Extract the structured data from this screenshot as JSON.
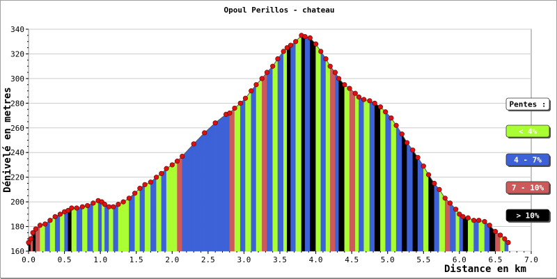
{
  "chart_data": {
    "type": "area",
    "title": "Opoul Perillos - chateau",
    "xlabel": "Distance en km",
    "ylabel": "Dénivelé en metres",
    "xlim": [
      0,
      7
    ],
    "ylim": [
      160,
      340
    ],
    "x_ticks": [
      "0.0",
      "0.5",
      "1.0",
      "1.5",
      "2.0",
      "2.5",
      "3.0",
      "3.5",
      "4.0",
      "4.5",
      "5.0",
      "5.5",
      "6.0",
      "6.5",
      "7.0"
    ],
    "y_ticks": [
      "160",
      "180",
      "200",
      "220",
      "240",
      "260",
      "280",
      "300",
      "320",
      "340"
    ],
    "grid": true,
    "legend": {
      "position": "right",
      "title": "Pentes :",
      "entries": [
        {
          "label": "< 4%",
          "color": "#aaff33"
        },
        {
          "label": "4 - 7%",
          "color": "#3d62d8"
        },
        {
          "label": "7 - 10%",
          "color": "#cc5a5a"
        },
        {
          "label": "> 10%",
          "color": "#000000"
        }
      ]
    },
    "colors": {
      "lt4": "#aaff33",
      "p4_7": "#3d62d8",
      "p7_10": "#cc5a5a",
      "gt10": "#000000",
      "points": "#dd1111"
    },
    "profile": [
      {
        "x": 0.0,
        "y": 167,
        "c": "gt10"
      },
      {
        "x": 0.03,
        "y": 170,
        "c": "p7_10"
      },
      {
        "x": 0.06,
        "y": 175,
        "c": "gt10"
      },
      {
        "x": 0.1,
        "y": 178,
        "c": "p7_10"
      },
      {
        "x": 0.16,
        "y": 181,
        "c": "lt4"
      },
      {
        "x": 0.23,
        "y": 182,
        "c": "p4_7"
      },
      {
        "x": 0.3,
        "y": 185,
        "c": "lt4"
      },
      {
        "x": 0.37,
        "y": 188,
        "c": "p4_7"
      },
      {
        "x": 0.44,
        "y": 190,
        "c": "lt4"
      },
      {
        "x": 0.5,
        "y": 192,
        "c": "p4_7"
      },
      {
        "x": 0.55,
        "y": 193,
        "c": "gt10"
      },
      {
        "x": 0.6,
        "y": 195,
        "c": "lt4"
      },
      {
        "x": 0.67,
        "y": 195,
        "c": "p4_7"
      },
      {
        "x": 0.75,
        "y": 196,
        "c": "lt4"
      },
      {
        "x": 0.82,
        "y": 197,
        "c": "p4_7"
      },
      {
        "x": 0.9,
        "y": 199,
        "c": "lt4"
      },
      {
        "x": 0.97,
        "y": 201,
        "c": "p4_7"
      },
      {
        "x": 1.02,
        "y": 200,
        "c": "lt4"
      },
      {
        "x": 1.06,
        "y": 198,
        "c": "p4_7"
      },
      {
        "x": 1.12,
        "y": 196,
        "c": "lt4"
      },
      {
        "x": 1.18,
        "y": 196,
        "c": "p4_7"
      },
      {
        "x": 1.25,
        "y": 198,
        "c": "lt4"
      },
      {
        "x": 1.32,
        "y": 200,
        "c": "lt4"
      },
      {
        "x": 1.4,
        "y": 203,
        "c": "p4_7"
      },
      {
        "x": 1.48,
        "y": 207,
        "c": "lt4"
      },
      {
        "x": 1.55,
        "y": 211,
        "c": "p4_7"
      },
      {
        "x": 1.62,
        "y": 214,
        "c": "lt4"
      },
      {
        "x": 1.7,
        "y": 216,
        "c": "p4_7"
      },
      {
        "x": 1.78,
        "y": 220,
        "c": "lt4"
      },
      {
        "x": 1.85,
        "y": 223,
        "c": "p4_7"
      },
      {
        "x": 1.92,
        "y": 227,
        "c": "lt4"
      },
      {
        "x": 2.0,
        "y": 230,
        "c": "lt4"
      },
      {
        "x": 2.07,
        "y": 233,
        "c": "p7_10"
      },
      {
        "x": 2.14,
        "y": 237,
        "c": "p4_7"
      },
      {
        "x": 2.3,
        "y": 247,
        "c": "p4_7"
      },
      {
        "x": 2.45,
        "y": 256,
        "c": "p4_7"
      },
      {
        "x": 2.6,
        "y": 264,
        "c": "p4_7"
      },
      {
        "x": 2.75,
        "y": 271,
        "c": "p4_7"
      },
      {
        "x": 2.8,
        "y": 272,
        "c": "p7_10"
      },
      {
        "x": 2.87,
        "y": 276,
        "c": "lt4"
      },
      {
        "x": 2.95,
        "y": 280,
        "c": "p4_7"
      },
      {
        "x": 3.02,
        "y": 284,
        "c": "lt4"
      },
      {
        "x": 3.1,
        "y": 290,
        "c": "p4_7"
      },
      {
        "x": 3.17,
        "y": 295,
        "c": "lt4"
      },
      {
        "x": 3.25,
        "y": 300,
        "c": "p7_10"
      },
      {
        "x": 3.32,
        "y": 305,
        "c": "p4_7"
      },
      {
        "x": 3.4,
        "y": 310,
        "c": "lt4"
      },
      {
        "x": 3.47,
        "y": 316,
        "c": "p4_7"
      },
      {
        "x": 3.55,
        "y": 322,
        "c": "lt4"
      },
      {
        "x": 3.6,
        "y": 325,
        "c": "gt10"
      },
      {
        "x": 3.65,
        "y": 327,
        "c": "p4_7"
      },
      {
        "x": 3.72,
        "y": 330,
        "c": "lt4"
      },
      {
        "x": 3.8,
        "y": 335,
        "c": "gt10"
      },
      {
        "x": 3.85,
        "y": 334,
        "c": "p4_7"
      },
      {
        "x": 3.92,
        "y": 333,
        "c": "gt10"
      },
      {
        "x": 4.0,
        "y": 328,
        "c": "lt4"
      },
      {
        "x": 4.07,
        "y": 322,
        "c": "p4_7"
      },
      {
        "x": 4.14,
        "y": 316,
        "c": "lt4"
      },
      {
        "x": 4.2,
        "y": 310,
        "c": "p7_10"
      },
      {
        "x": 4.27,
        "y": 305,
        "c": "p4_7"
      },
      {
        "x": 4.32,
        "y": 300,
        "c": "gt10"
      },
      {
        "x": 4.4,
        "y": 295,
        "c": "lt4"
      },
      {
        "x": 4.47,
        "y": 292,
        "c": "p7_10"
      },
      {
        "x": 4.55,
        "y": 288,
        "c": "lt4"
      },
      {
        "x": 4.6,
        "y": 285,
        "c": "p4_7"
      },
      {
        "x": 4.67,
        "y": 283,
        "c": "lt4"
      },
      {
        "x": 4.75,
        "y": 282,
        "c": "p4_7"
      },
      {
        "x": 4.82,
        "y": 280,
        "c": "gt10"
      },
      {
        "x": 4.9,
        "y": 277,
        "c": "lt4"
      },
      {
        "x": 4.97,
        "y": 273,
        "c": "p4_7"
      },
      {
        "x": 5.05,
        "y": 268,
        "c": "lt4"
      },
      {
        "x": 5.12,
        "y": 262,
        "c": "p4_7"
      },
      {
        "x": 5.2,
        "y": 255,
        "c": "gt10"
      },
      {
        "x": 5.27,
        "y": 248,
        "c": "p4_7"
      },
      {
        "x": 5.35,
        "y": 242,
        "c": "gt10"
      },
      {
        "x": 5.42,
        "y": 236,
        "c": "p4_7"
      },
      {
        "x": 5.5,
        "y": 229,
        "c": "lt4"
      },
      {
        "x": 5.57,
        "y": 222,
        "c": "gt10"
      },
      {
        "x": 5.65,
        "y": 215,
        "c": "p4_7"
      },
      {
        "x": 5.72,
        "y": 210,
        "c": "lt4"
      },
      {
        "x": 5.8,
        "y": 203,
        "c": "p7_10"
      },
      {
        "x": 5.87,
        "y": 199,
        "c": "p4_7"
      },
      {
        "x": 5.95,
        "y": 194,
        "c": "lt4"
      },
      {
        "x": 6.0,
        "y": 190,
        "c": "p4_7"
      },
      {
        "x": 6.05,
        "y": 188,
        "c": "gt10"
      },
      {
        "x": 6.12,
        "y": 187,
        "c": "lt4"
      },
      {
        "x": 6.2,
        "y": 185,
        "c": "p4_7"
      },
      {
        "x": 6.27,
        "y": 185,
        "c": "lt4"
      },
      {
        "x": 6.35,
        "y": 184,
        "c": "p4_7"
      },
      {
        "x": 6.42,
        "y": 181,
        "c": "gt10"
      },
      {
        "x": 6.5,
        "y": 176,
        "c": "p7_10"
      },
      {
        "x": 6.57,
        "y": 173,
        "c": "lt4"
      },
      {
        "x": 6.63,
        "y": 170,
        "c": "p4_7"
      },
      {
        "x": 6.68,
        "y": 167,
        "c": "lt4"
      }
    ]
  }
}
